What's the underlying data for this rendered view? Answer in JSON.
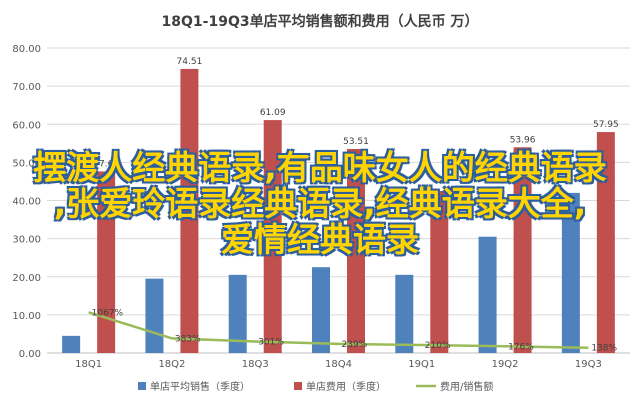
{
  "chart_data": {
    "type": "bar",
    "title": "18Q1-19Q3单店平均销售额和费用（人民币 万）",
    "categories": [
      "18Q1",
      "18Q2",
      "18Q3",
      "18Q4",
      "19Q1",
      "19Q2",
      "19Q3"
    ],
    "yticks": [
      "0.00",
      "10.00",
      "20.00",
      "30.00",
      "40.00",
      "50.00",
      "60.00",
      "70.00",
      "80.00"
    ],
    "ylim": [
      0,
      80
    ],
    "grid": true,
    "legend_position": "bottom",
    "series": [
      {
        "name": "单店平均销售（季度）",
        "type": "bar",
        "color": "#4f81bd",
        "values": [
          4.5,
          19.5,
          20.5,
          22.5,
          20.5,
          30.5,
          42.0
        ],
        "labels": [
          "",
          "",
          "",
          "",
          "",
          "",
          ""
        ]
      },
      {
        "name": "单店费用（季度）",
        "type": "bar",
        "color": "#c0504d",
        "values": [
          47.63,
          74.51,
          61.09,
          53.51,
          42.5,
          53.96,
          57.95
        ],
        "labels": [
          "47.63",
          "74.51",
          "61.09",
          "53.51",
          "",
          "53.96",
          "57.95"
        ]
      },
      {
        "name": "费用/销售额",
        "type": "line",
        "color": "#9bbb59",
        "values": [
          10.67,
          3.83,
          3.01,
          2.39,
          2.1,
          1.76,
          1.38
        ],
        "labels": [
          "1067%",
          "383%",
          "301%",
          "239%",
          "210%",
          "176%",
          "138%"
        ]
      }
    ]
  },
  "overlay_text": [
    "摆渡人经典语录,有品味女人的经典语录",
    ",张爱玲语录经典语录,经典语录大全,",
    "爱情经典语录"
  ]
}
